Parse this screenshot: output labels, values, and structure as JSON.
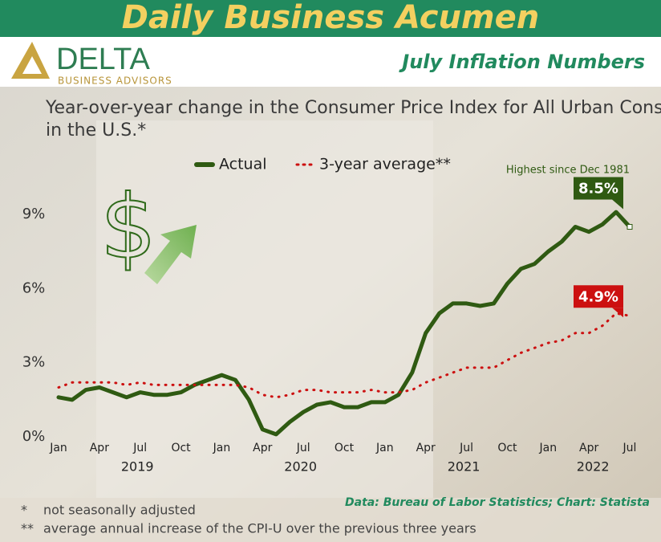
{
  "header": {
    "title": "Daily Business Acumen",
    "subtitle": "July Inflation Numbers"
  },
  "logo": {
    "name": "DELTA",
    "tagline": "BUSINESS ADVISORS"
  },
  "chart_data": {
    "type": "line",
    "title": "Year-over-year change in the Consumer Price Index for All Urban Consumers in the U.S.*",
    "categories": [
      "Jan",
      null,
      null,
      "Apr",
      null,
      null,
      "Jul",
      null,
      null,
      "Oct",
      null,
      null,
      "Jan",
      null,
      null,
      "Apr",
      null,
      null,
      "Jul",
      null,
      null,
      "Oct",
      null,
      null,
      "Jan",
      null,
      null,
      "Apr",
      null,
      null,
      "Jul",
      null,
      null,
      "Oct",
      null,
      null,
      "Jan",
      null,
      null,
      "Apr",
      null,
      null,
      "Jul"
    ],
    "year_labels": [
      "2019",
      "2020",
      "2021",
      "2022"
    ],
    "series": [
      {
        "name": "Actual",
        "color": "#2f5a12",
        "style": "solid",
        "values": [
          1.6,
          1.5,
          1.9,
          2.0,
          1.8,
          1.6,
          1.8,
          1.7,
          1.7,
          1.8,
          2.1,
          2.3,
          2.5,
          2.3,
          1.5,
          0.3,
          0.1,
          0.6,
          1.0,
          1.3,
          1.4,
          1.2,
          1.2,
          1.4,
          1.4,
          1.7,
          2.6,
          4.2,
          5.0,
          5.4,
          5.4,
          5.3,
          5.4,
          6.2,
          6.8,
          7.0,
          7.5,
          7.9,
          8.5,
          8.3,
          8.6,
          9.1,
          8.5
        ],
        "value_labels": [
          null,
          null,
          null,
          null,
          null,
          null,
          null,
          null,
          null,
          null,
          null,
          null,
          null,
          null,
          null,
          null,
          null,
          null,
          null,
          null,
          null,
          null,
          null,
          null,
          null,
          null,
          null,
          null,
          null,
          null,
          null,
          null,
          null,
          null,
          null,
          null,
          null,
          null,
          null,
          null,
          null,
          null,
          "8.5%"
        ]
      },
      {
        "name": "3-year average**",
        "color": "#cc1010",
        "style": "dotted",
        "values": [
          2.0,
          2.2,
          2.2,
          2.2,
          2.2,
          2.1,
          2.2,
          2.1,
          2.1,
          2.1,
          2.1,
          2.1,
          2.1,
          2.1,
          2.0,
          1.7,
          1.6,
          1.7,
          1.9,
          1.9,
          1.8,
          1.8,
          1.8,
          1.9,
          1.8,
          1.8,
          1.9,
          2.2,
          2.4,
          2.6,
          2.8,
          2.8,
          2.8,
          3.1,
          3.4,
          3.6,
          3.8,
          3.9,
          4.2,
          4.2,
          4.5,
          5.0,
          4.9
        ],
        "value_labels": [
          null,
          null,
          null,
          null,
          null,
          null,
          null,
          null,
          null,
          null,
          null,
          null,
          null,
          null,
          null,
          null,
          null,
          null,
          null,
          null,
          null,
          null,
          null,
          null,
          null,
          null,
          null,
          null,
          null,
          null,
          null,
          null,
          null,
          null,
          null,
          null,
          null,
          null,
          null,
          null,
          null,
          null,
          "4.9%"
        ]
      }
    ],
    "ylim": [
      0,
      10.5
    ],
    "yticks": [
      {
        "value": 0,
        "label": "0%"
      },
      {
        "value": 3,
        "label": "3%"
      },
      {
        "value": 6,
        "label": "6%"
      },
      {
        "value": 9,
        "label": "9%"
      }
    ],
    "annotation": "Highest since Dec 1981",
    "source": "Data: Bureau of Labor Statistics; Chart: Statista"
  },
  "footnotes": [
    {
      "mark": "*",
      "text": "not seasonally adjusted"
    },
    {
      "mark": "**",
      "text": "average annual increase of the CPI-U over the previous three years"
    }
  ]
}
